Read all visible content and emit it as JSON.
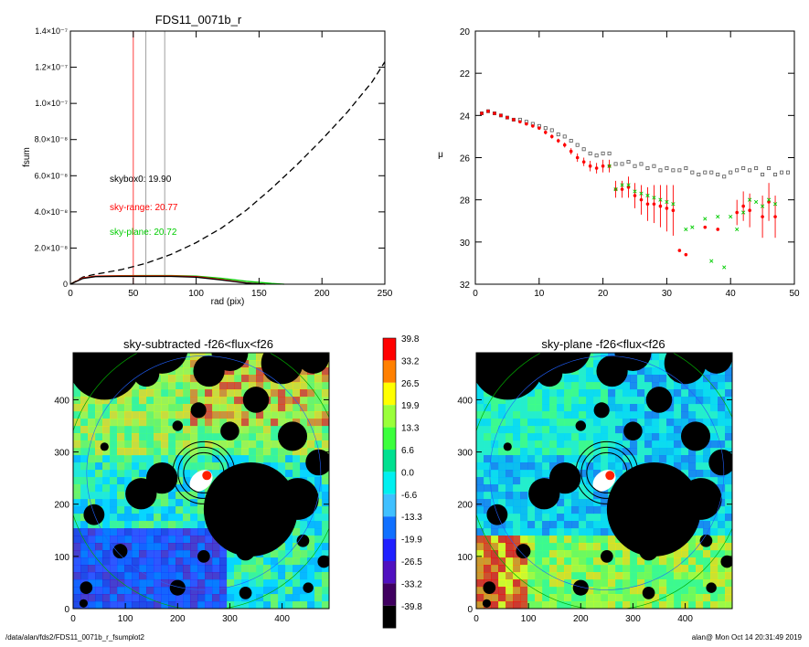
{
  "chart_data": [
    {
      "type": "line",
      "title": "FDS11_0071b_r",
      "xlabel": "rad (pix)",
      "ylabel": "fsum",
      "xlim": [
        0,
        250
      ],
      "ylim": [
        0,
        1.4e-07
      ],
      "x_ticks": [
        "0",
        "50",
        "100",
        "150",
        "200",
        "250"
      ],
      "y_ticks": [
        "0",
        "2.0×10⁻⁸",
        "4.0×10⁻⁸",
        "6.0×10⁻⁸",
        "8.0×10⁻⁸",
        "1.0×10⁻⁷",
        "1.2×10⁻⁷",
        "1.4×10⁻⁷"
      ],
      "annotations": [
        {
          "text": "skybox0: 19.90",
          "color": "#000000"
        },
        {
          "text": "sky-range: 20.77",
          "color": "#ff0000"
        },
        {
          "text": "sky-plane: 20.72",
          "color": "#00cc00"
        }
      ],
      "vlines": [
        {
          "x": 50,
          "color": "#ff4040"
        },
        {
          "x": 60,
          "color": "#a0a0a0"
        },
        {
          "x": 75,
          "color": "#a0a0a0"
        }
      ],
      "series": [
        {
          "color": "#000000",
          "style": "dashed",
          "x": [
            0,
            10,
            20,
            40,
            60,
            80,
            100,
            120,
            140,
            160,
            180,
            200,
            220,
            240,
            250
          ],
          "y": [
            0,
            4e-09,
            5.5e-09,
            8e-09,
            1.15e-08,
            1.65e-08,
            2.3e-08,
            3.1e-08,
            4.1e-08,
            5.3e-08,
            6.6e-08,
            8e-08,
            9.5e-08,
            1.12e-07,
            1.23e-07
          ]
        },
        {
          "color": "#00cc00",
          "style": "solid",
          "x": [
            0,
            10,
            20,
            40,
            60,
            80,
            100,
            120,
            140,
            160,
            170
          ],
          "y": [
            0,
            3.5e-09,
            4.5e-09,
            4.7e-09,
            4.8e-09,
            4.8e-09,
            4.5e-09,
            3.3e-09,
            1.6e-09,
            4e-10,
            0
          ]
        },
        {
          "color": "#ff0000",
          "style": "solid",
          "x": [
            0,
            10,
            20,
            40,
            60,
            80,
            100,
            120,
            140,
            155
          ],
          "y": [
            0,
            3.5e-09,
            4.5e-09,
            4.6e-09,
            4.6e-09,
            4.6e-09,
            4.2e-09,
            2.6e-09,
            7e-10,
            0
          ]
        },
        {
          "color": "#000000",
          "style": "solid",
          "x": [
            0,
            10,
            20,
            40,
            60,
            80,
            100,
            120,
            140,
            155
          ],
          "y": [
            0,
            3.2e-09,
            4.2e-09,
            4.3e-09,
            4.3e-09,
            4.3e-09,
            3.9e-09,
            2.3e-09,
            6e-10,
            0
          ]
        }
      ]
    },
    {
      "type": "scatter",
      "xlabel": "",
      "ylabel": "μ",
      "xlim": [
        0,
        50
      ],
      "ylim": [
        32,
        20
      ],
      "y_inverted": true,
      "x_ticks": [
        "0",
        "10",
        "20",
        "30",
        "40",
        "50"
      ],
      "y_ticks": [
        "20",
        "22",
        "24",
        "26",
        "28",
        "30",
        "32"
      ],
      "series": [
        {
          "color": "#555555",
          "marker": "square",
          "x": [
            1,
            2,
            3,
            4,
            5,
            6,
            7,
            8,
            9,
            10,
            11,
            12,
            13,
            14,
            15,
            16,
            17,
            18,
            19,
            20,
            21,
            22,
            23,
            24,
            25,
            26,
            27,
            28,
            29,
            30,
            31,
            32,
            33,
            34,
            35,
            36,
            37,
            38,
            39,
            40,
            41,
            42,
            43,
            44,
            45,
            46,
            47,
            48,
            49
          ],
          "y": [
            23.9,
            23.8,
            23.9,
            24.0,
            24.1,
            24.2,
            24.2,
            24.3,
            24.4,
            24.5,
            24.6,
            24.7,
            24.9,
            25.0,
            25.2,
            25.4,
            25.6,
            25.8,
            25.9,
            25.8,
            25.8,
            26.3,
            26.3,
            26.2,
            26.4,
            26.3,
            26.5,
            26.4,
            26.6,
            26.5,
            26.6,
            26.6,
            26.5,
            26.7,
            26.8,
            26.7,
            26.7,
            26.8,
            26.9,
            26.7,
            26.6,
            26.5,
            26.6,
            26.5,
            26.8,
            26.5,
            26.8,
            26.7,
            26.7
          ]
        },
        {
          "color": "#ff0000",
          "marker": "dot",
          "errorbars": true,
          "x": [
            1,
            2,
            3,
            4,
            5,
            6,
            7,
            8,
            9,
            10,
            11,
            12,
            13,
            14,
            15,
            16,
            17,
            18,
            19,
            20,
            21,
            22,
            23,
            24,
            25,
            26,
            27,
            28,
            29,
            30,
            31,
            32,
            33,
            36,
            38,
            41,
            42,
            43,
            45,
            46,
            47
          ],
          "y": [
            23.9,
            23.8,
            23.9,
            24.0,
            24.1,
            24.2,
            24.3,
            24.4,
            24.5,
            24.6,
            24.8,
            25.0,
            25.2,
            25.4,
            25.7,
            26.0,
            26.2,
            26.4,
            26.5,
            26.4,
            26.4,
            27.5,
            27.5,
            27.4,
            27.8,
            28.0,
            28.2,
            28.2,
            28.3,
            28.4,
            28.5,
            30.4,
            30.6,
            29.3,
            29.4,
            28.6,
            28.3,
            28.5,
            28.8,
            28.1,
            28.8
          ],
          "err": [
            0.05,
            0.05,
            0.05,
            0.05,
            0.05,
            0.06,
            0.06,
            0.07,
            0.08,
            0.08,
            0.1,
            0.1,
            0.1,
            0.12,
            0.15,
            0.2,
            0.2,
            0.25,
            0.25,
            0.3,
            0.3,
            0.4,
            0.4,
            0.5,
            0.6,
            0.7,
            0.8,
            0.9,
            1.0,
            1.1,
            1.2,
            0.0,
            0.0,
            0.0,
            0.0,
            0.6,
            0.7,
            0.8,
            1.0,
            0.9,
            1.0
          ]
        },
        {
          "color": "#00cc00",
          "marker": "cross",
          "x": [
            21,
            22,
            23,
            24,
            25,
            26,
            27,
            28,
            29,
            30,
            31,
            33,
            34,
            36,
            37,
            38,
            39,
            40,
            41,
            42,
            43,
            44,
            45,
            46,
            47
          ],
          "y": [
            26.4,
            27.5,
            27.3,
            27.3,
            27.6,
            27.7,
            27.8,
            27.9,
            28.0,
            28.1,
            28.2,
            29.4,
            29.3,
            28.9,
            30.9,
            28.8,
            31.2,
            28.8,
            29.4,
            28.6,
            28.0,
            28.1,
            28.3,
            28.0,
            28.2
          ]
        }
      ]
    },
    {
      "type": "heatmap",
      "title": "sky-subtracted -f26<flux<f26",
      "xlim": [
        0,
        490
      ],
      "ylim": [
        0,
        490
      ],
      "x_ticks": [
        "0",
        "100",
        "200",
        "300",
        "400"
      ],
      "y_ticks": [
        "0",
        "100",
        "200",
        "300",
        "400"
      ]
    },
    {
      "type": "heatmap",
      "title": "sky-plane -f26<flux<f26",
      "xlim": [
        0,
        490
      ],
      "ylim": [
        0,
        490
      ],
      "x_ticks": [
        "0",
        "100",
        "200",
        "300",
        "400"
      ],
      "y_ticks": [
        "0",
        "100",
        "200",
        "300",
        "400"
      ]
    }
  ],
  "colorbar": {
    "labels": [
      "39.8",
      "33.2",
      "26.5",
      "19.9",
      "13.3",
      "6.6",
      "0.0",
      "-6.6",
      "-13.3",
      "-19.9",
      "-26.5",
      "-33.2",
      "-39.8"
    ],
    "colors": [
      "#ff0000",
      "#ff8000",
      "#ffff00",
      "#9aff3a",
      "#3cff3c",
      "#00e090",
      "#00f0f0",
      "#40c0ff",
      "#1070ff",
      "#2020ff",
      "#5010c0",
      "#400060",
      "#000000"
    ]
  },
  "footer": {
    "left": "/data/alan/fds2/FDS11_0071b_r_fsumplot2",
    "right": "alan@  Mon Oct 14 20:31:49 2019"
  }
}
